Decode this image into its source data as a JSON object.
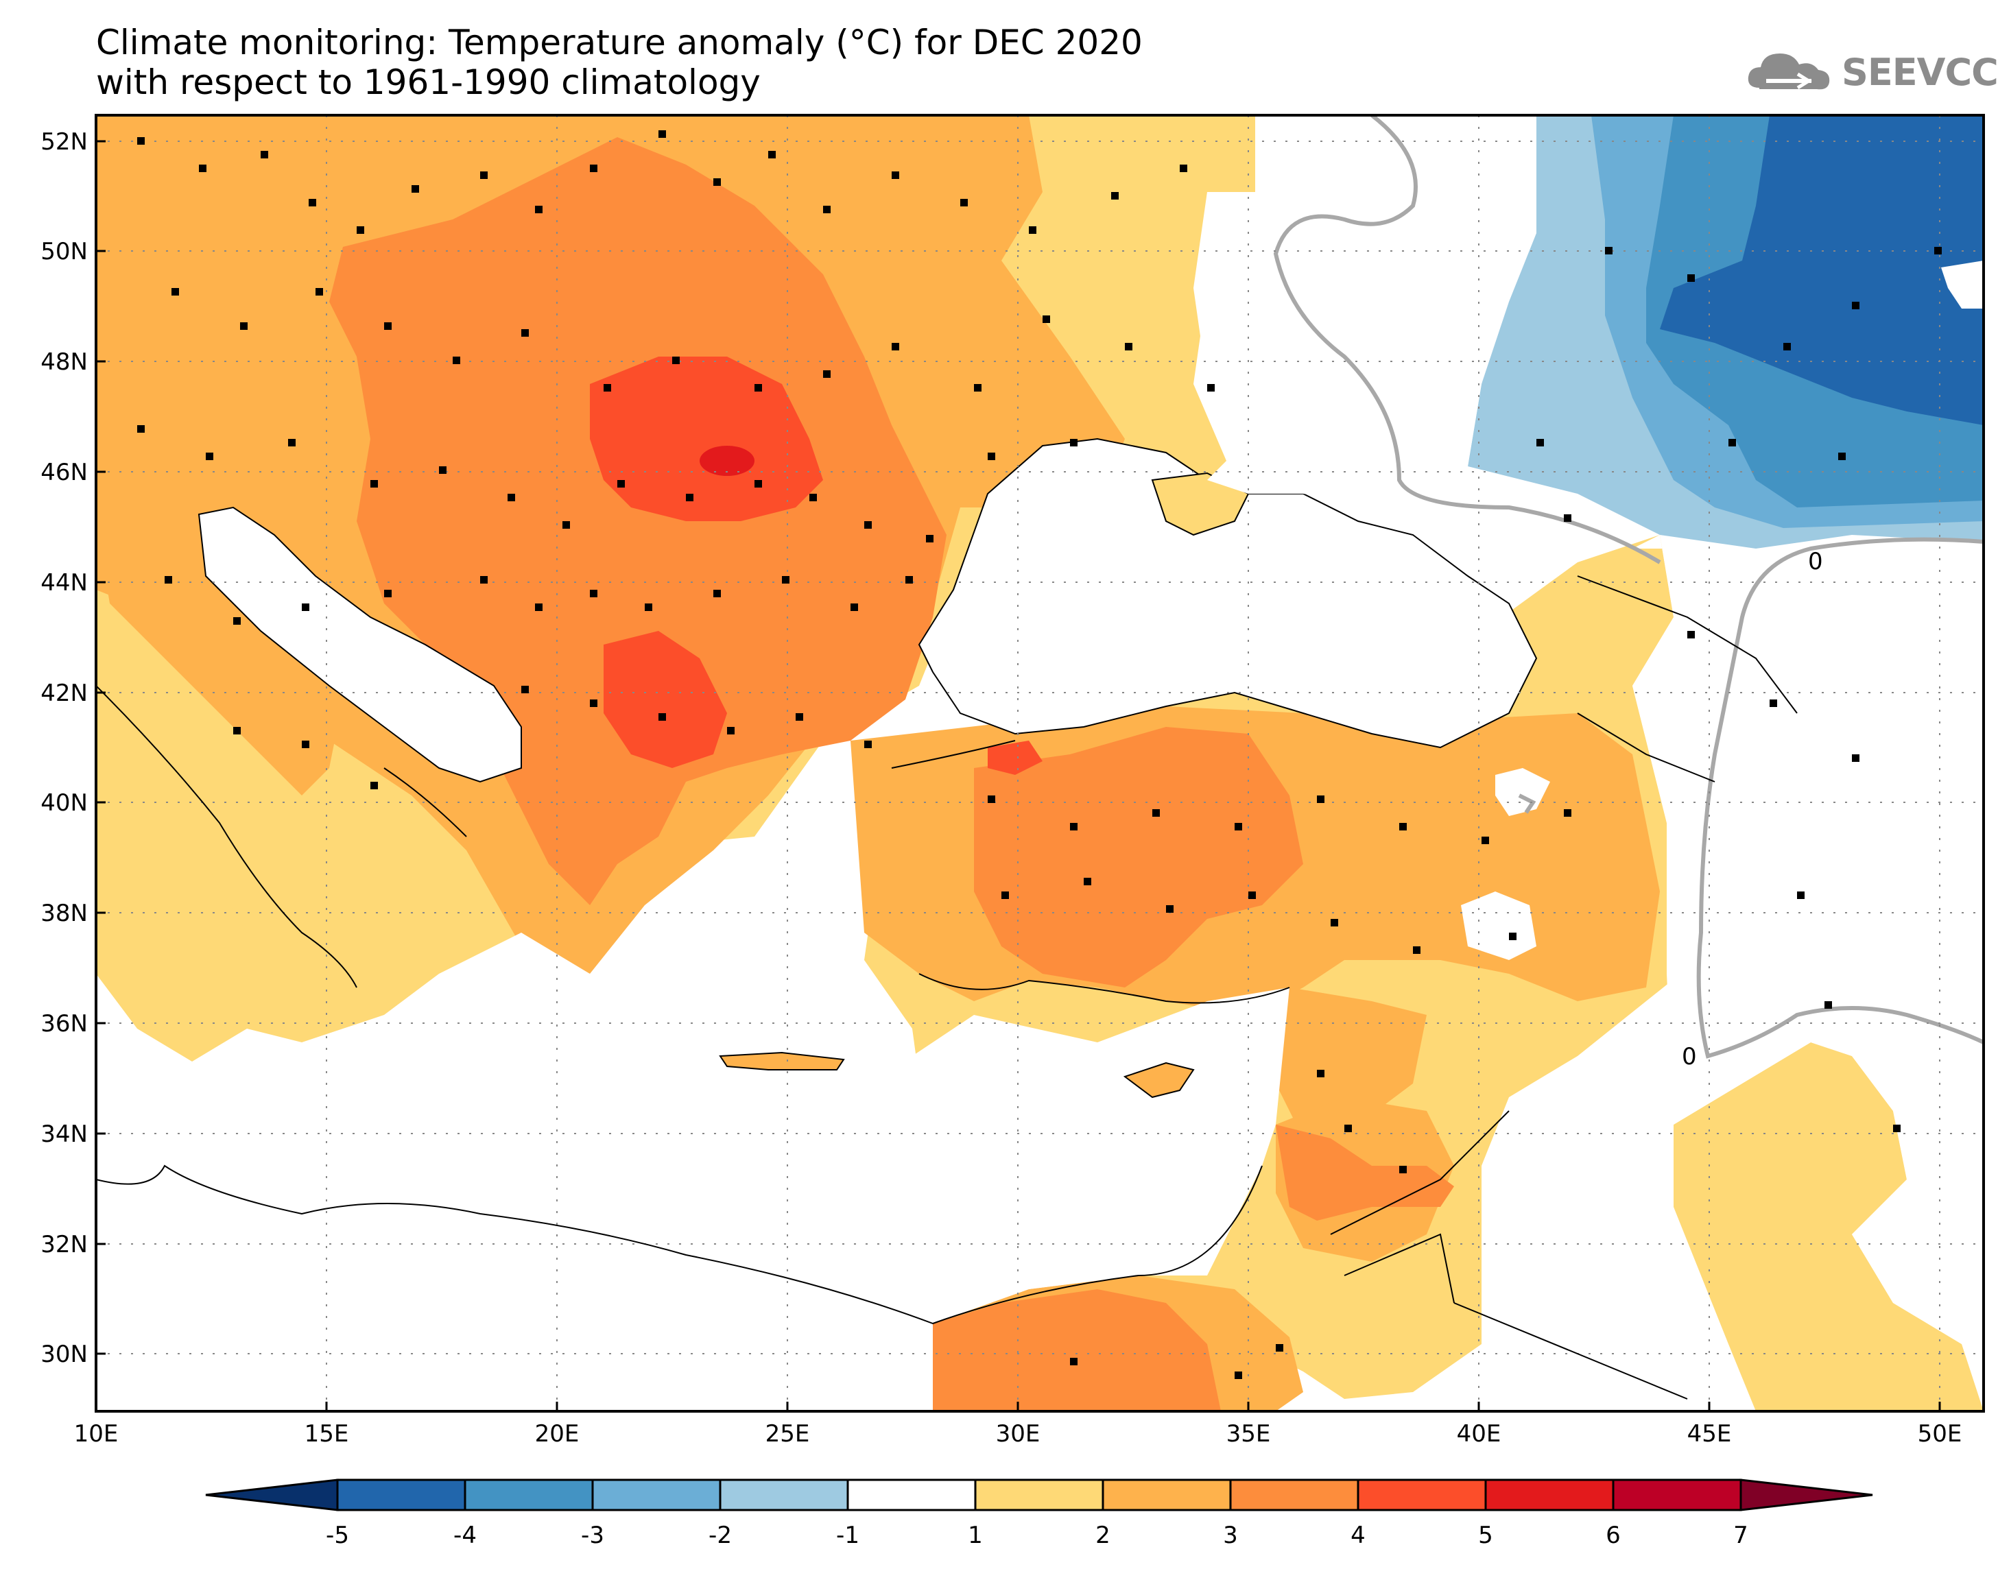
{
  "title": {
    "line1": "Climate monitoring: Temperature anomaly (°C) for DEC 2020",
    "line2": "with respect to 1961-1990 climatology"
  },
  "logo": {
    "text": "SEEVCCC",
    "icon": "cloud-icon"
  },
  "map": {
    "lon_range": [
      10,
      51
    ],
    "lat_range": [
      29,
      52.5
    ],
    "x_ticks": [
      "10E",
      "15E",
      "20E",
      "25E",
      "30E",
      "35E",
      "40E",
      "45E",
      "50E"
    ],
    "y_ticks": [
      "30N",
      "32N",
      "34N",
      "36N",
      "38N",
      "40N",
      "42N",
      "44N",
      "46N",
      "48N",
      "50N",
      "52N"
    ],
    "contour_labels": [
      "0",
      "0"
    ]
  },
  "colorbar": {
    "ticks": [
      "-5",
      "-4",
      "-3",
      "-2",
      "-1",
      "1",
      "2",
      "3",
      "4",
      "5",
      "6",
      "7"
    ],
    "colors": [
      "#08306b",
      "#2166ac",
      "#4393c3",
      "#6baed6",
      "#9ecae1",
      "#ffffff",
      "#fed976",
      "#feb24c",
      "#fd8d3c",
      "#fc4e2a",
      "#e31a1c",
      "#bd0026",
      "#800026"
    ]
  },
  "colors": {
    "anom_1_2": "#fed976",
    "anom_2_3": "#feb24c",
    "anom_3_4": "#fd8d3c",
    "anom_4_5": "#fc4e2a",
    "anom_5_6": "#e31a1c",
    "neg_1_2": "#9ecae1",
    "neg_2_3": "#6baed6",
    "neg_3_4": "#4393c3",
    "neg_4_5": "#2166ac"
  }
}
